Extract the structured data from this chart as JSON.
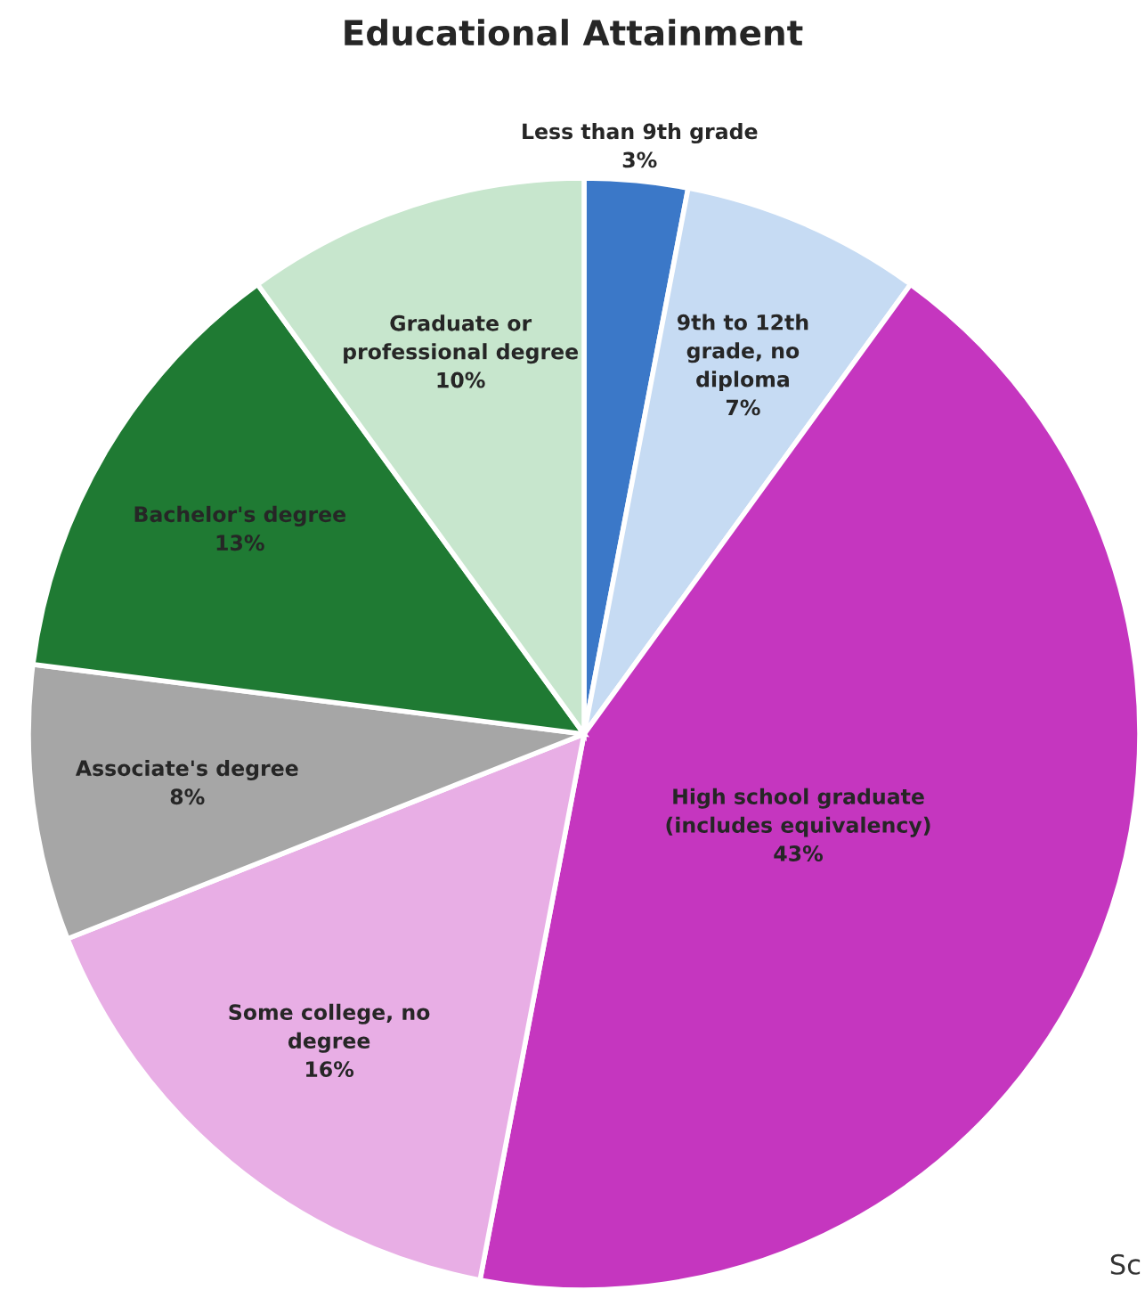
{
  "chart_data": {
    "type": "pie",
    "title": "Educational Attainment",
    "categories": [
      "Less than 9th grade",
      "9th to 12th\ngrade, no\ndiploma",
      "High school graduate\n(includes equivalency)",
      "Some college, no\ndegree",
      "Associate's degree",
      "Bachelor's degree",
      "Graduate or\nprofessional degree"
    ],
    "values": [
      3,
      7,
      43,
      16,
      8,
      13,
      10
    ],
    "value_labels": [
      "3%",
      "7%",
      "43%",
      "16%",
      "8%",
      "13%",
      "10%"
    ],
    "colors": [
      "#3b78c8",
      "#c6dbf3",
      "#c536bf",
      "#e8aee5",
      "#a6a6a6",
      "#1f7a33",
      "#c7e6cd"
    ],
    "annotations": [
      "Sc"
    ]
  }
}
